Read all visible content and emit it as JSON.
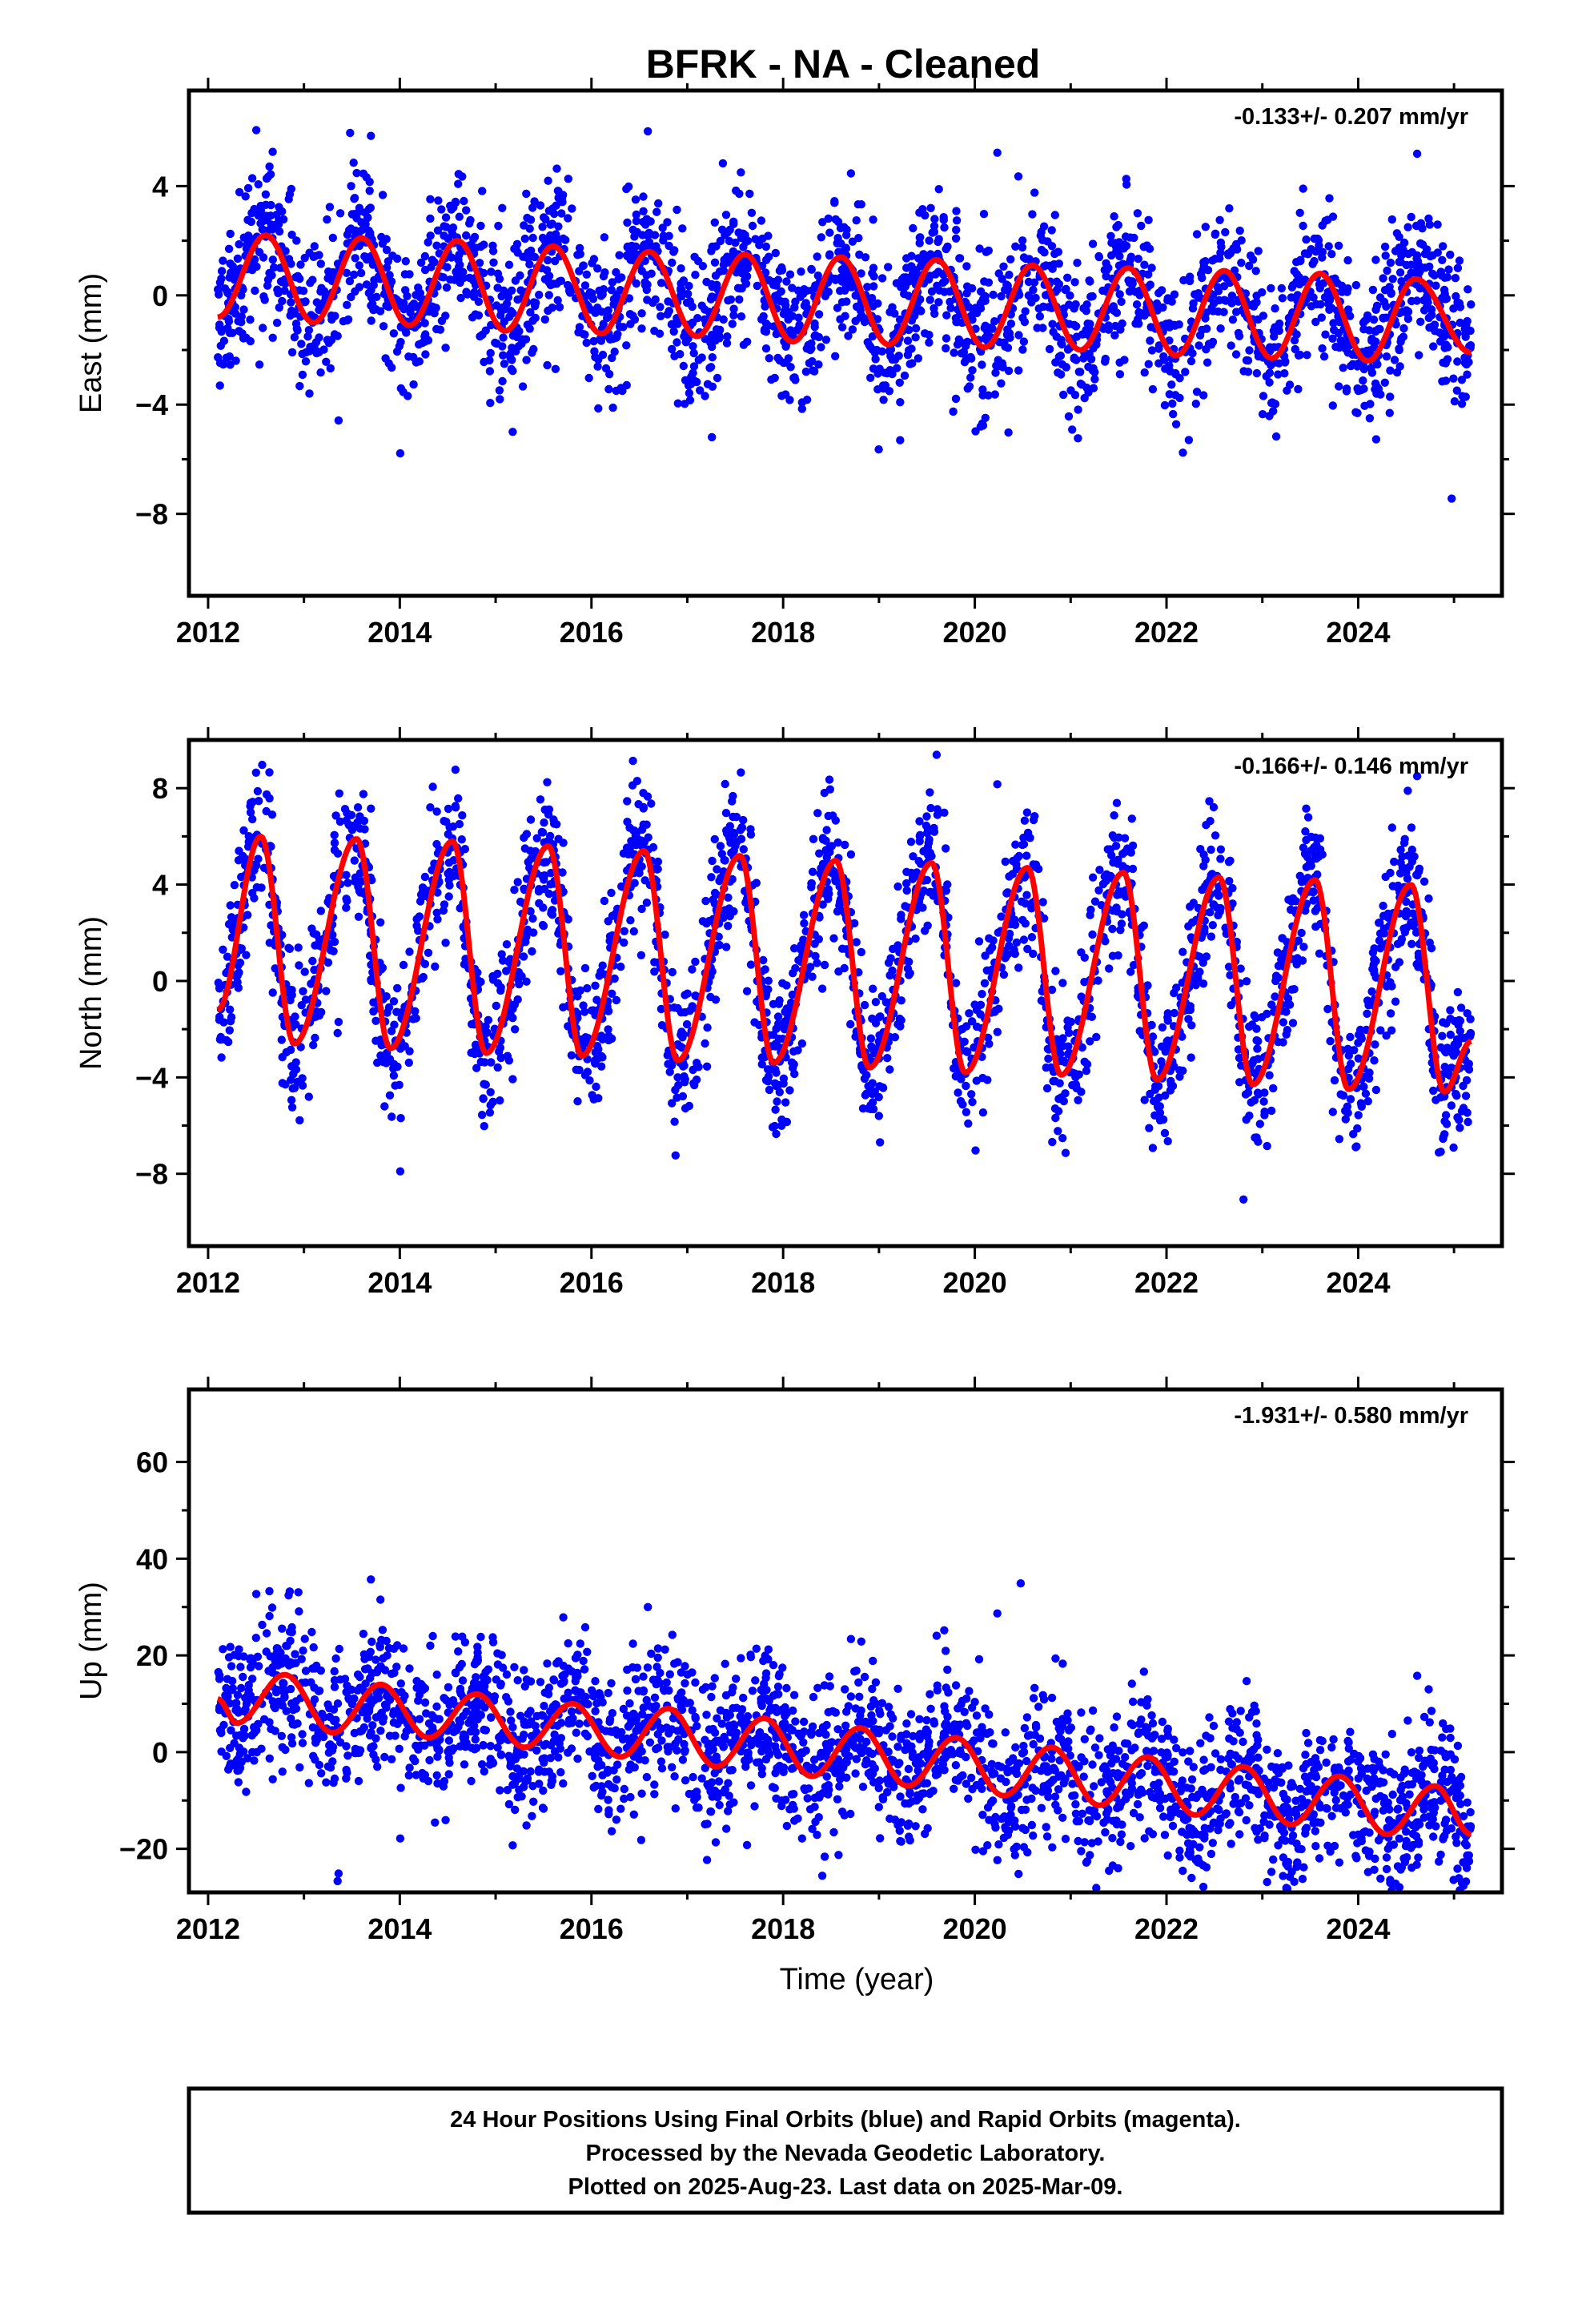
{
  "title": "BFRK  - NA - Cleaned",
  "xlabel": "Time (year)",
  "footer": {
    "line1": "24 Hour Positions Using Final Orbits (blue) and Rapid Orbits (magenta).",
    "line2": "Processed by the Nevada Geodetic Laboratory.",
    "line3": "Plotted on 2025-Aug-23. Last data on 2025-Mar-09."
  },
  "colors": {
    "observations": "#0000ff",
    "model": "#ff0000",
    "frame": "#000000"
  },
  "chart_data": [
    {
      "type": "scatter",
      "component": "east",
      "ylabel": "East (mm)",
      "rate_label": "-0.133+/- 0.207 mm/yr",
      "xlim": [
        2011.8,
        2025.5
      ],
      "ylim": [
        -11,
        7.5
      ],
      "xticks": [
        2012,
        2014,
        2016,
        2018,
        2020,
        2022,
        2024
      ],
      "yticks": [
        4,
        0,
        -4,
        -8
      ],
      "data_range": [
        2012.1,
        2025.18
      ],
      "series": [
        {
          "role": "observations",
          "marker": "dot"
        },
        {
          "role": "seasonal-model",
          "x": [
            2012.1,
            2012.6,
            2013.1,
            2013.6,
            2014.1,
            2014.6,
            2015.1,
            2015.6,
            2016.1,
            2016.6,
            2017.1,
            2017.6,
            2018.1,
            2018.6,
            2019.1,
            2019.6,
            2020.1,
            2020.6,
            2021.1,
            2021.6,
            2022.1,
            2022.6,
            2023.1,
            2023.6,
            2024.1,
            2024.6,
            2025.18
          ],
          "y": [
            -0.8,
            2.2,
            -1.0,
            2.1,
            -1.1,
            2.0,
            -1.3,
            1.8,
            -1.4,
            1.6,
            -1.5,
            1.5,
            -1.7,
            1.4,
            -1.8,
            1.3,
            -1.9,
            1.1,
            -2.0,
            1.0,
            -2.2,
            0.9,
            -2.3,
            0.8,
            -2.4,
            0.6,
            -2.1
          ]
        }
      ]
    },
    {
      "type": "scatter",
      "component": "north",
      "ylabel": "North (mm)",
      "rate_label": "-0.166+/- 0.146 mm/yr",
      "xlim": [
        2011.8,
        2025.5
      ],
      "ylim": [
        -11,
        10
      ],
      "xticks": [
        2012,
        2014,
        2016,
        2018,
        2020,
        2022,
        2024
      ],
      "yticks": [
        8,
        4,
        0,
        -4,
        -8
      ],
      "data_range": [
        2012.1,
        2025.18
      ],
      "series": [
        {
          "role": "observations",
          "marker": "dot"
        },
        {
          "role": "seasonal-model",
          "x": [
            2012.1,
            2012.55,
            2012.9,
            2013.55,
            2013.9,
            2014.55,
            2014.9,
            2015.55,
            2015.9,
            2016.55,
            2016.9,
            2017.55,
            2017.9,
            2018.55,
            2018.9,
            2019.55,
            2019.9,
            2020.55,
            2020.9,
            2021.55,
            2021.9,
            2022.55,
            2022.9,
            2023.55,
            2023.9,
            2024.55,
            2024.9,
            2025.18
          ],
          "y": [
            -1.2,
            6.0,
            -2.6,
            5.9,
            -2.8,
            5.8,
            -3.0,
            5.6,
            -3.1,
            5.4,
            -3.3,
            5.2,
            -3.4,
            5.0,
            -3.6,
            4.9,
            -3.8,
            4.7,
            -3.9,
            4.5,
            -4.1,
            4.3,
            -4.3,
            4.2,
            -4.5,
            4.0,
            -4.6,
            -2.5
          ]
        }
      ]
    },
    {
      "type": "scatter",
      "component": "up",
      "ylabel": "Up (mm)",
      "rate_label": "-1.931+/- 0.580 mm/yr",
      "xlim": [
        2011.8,
        2025.5
      ],
      "ylim": [
        -29,
        75
      ],
      "xticks": [
        2012,
        2014,
        2016,
        2018,
        2020,
        2022,
        2024
      ],
      "yticks": [
        60,
        40,
        20,
        0,
        -20
      ],
      "data_range": [
        2012.1,
        2025.18
      ],
      "series": [
        {
          "role": "observations",
          "marker": "dot"
        },
        {
          "role": "seasonal-model",
          "x": [
            2012.1,
            2012.3,
            2012.8,
            2013.3,
            2013.8,
            2014.3,
            2014.8,
            2015.3,
            2015.8,
            2016.3,
            2016.8,
            2017.3,
            2017.8,
            2018.3,
            2018.8,
            2019.3,
            2019.8,
            2020.3,
            2020.8,
            2021.3,
            2021.8,
            2022.3,
            2022.8,
            2023.3,
            2023.8,
            2024.3,
            2024.8,
            2025.18
          ],
          "y": [
            11,
            6,
            16,
            4,
            14,
            3,
            12,
            1,
            10,
            -1,
            9,
            -3,
            7,
            -5,
            5,
            -7,
            3,
            -9,
            1,
            -11,
            -1,
            -13,
            -3,
            -15,
            -5,
            -17,
            -7,
            -17
          ]
        }
      ]
    }
  ]
}
